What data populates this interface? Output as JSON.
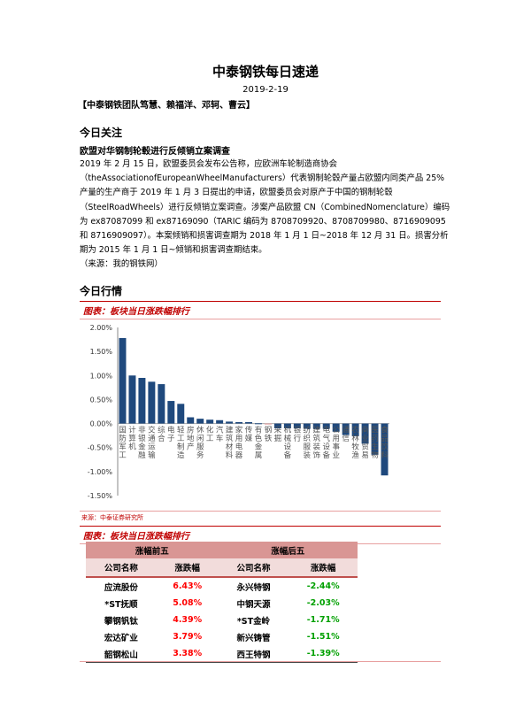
{
  "header": {
    "title": "中泰钢铁每日速递",
    "date": "2019-2-19",
    "team": "【中泰钢铁团队笃慧、赖福洋、邓轲、曹云】"
  },
  "focus": {
    "heading": "今日关注",
    "news_title": "欧盟对华钢制轮毂进行反倾销立案调查",
    "paragraphs": [
      "2019 年 2 月 15 日，欧盟委员会发布公告称，应欧洲车轮制造商协会（theAssociationofEuropeanWheelManufacturers）代表钢制轮毂产量占欧盟内同类产品 25%产量的生产商于 2019 年 1 月 3 日提出的申请，欧盟委员会对原产于中国的钢制轮毂（SteelRoadWheels）进行反倾销立案调查。涉案产品欧盟 CN（CombinedNomenclature）编码为 ex87087099 和 ex87169090（TARIC 编码为 8708709920、8708709980、8716909095 和 8716909097）。本案倾销和损害调查期为 2018 年 1 月 1 日~2018 年 12 月 31 日。损害分析期为 2015 年 1 月 1 日~倾销和损害调查期结束。",
      "（来源：我的钢铁网）"
    ]
  },
  "market": {
    "heading": "今日行情",
    "chart_caption": "图表：板块当日涨跌幅排行",
    "chart_source": "来源：中泰证券研究所",
    "table_caption": "图表：板块当日涨跌幅排行"
  },
  "chart_data": {
    "type": "bar",
    "categories": [
      "国防军工",
      "计算机",
      "非银金融",
      "交通运输",
      "综合",
      "电子",
      "轻工制造",
      "房地产",
      "休闲服务",
      "化工",
      "汽车",
      "建筑材料",
      "家用电器",
      "传媒",
      "有色金属",
      "钢铁",
      "采掘",
      "机械设备",
      "银行",
      "纺织服装",
      "建筑装饰",
      "电气设备",
      "公用事业",
      "通信",
      "农林牧渔",
      "商业贸易",
      "医药生物",
      "食品饮料"
    ],
    "values": [
      1.78,
      1.0,
      0.95,
      0.87,
      0.82,
      0.47,
      0.41,
      0.13,
      0.1,
      0.08,
      0.07,
      0.04,
      0.03,
      0.03,
      0.005,
      -0.02,
      -0.1,
      -0.1,
      -0.1,
      -0.11,
      -0.11,
      -0.11,
      -0.17,
      -0.24,
      -0.26,
      -0.42,
      -0.65,
      -1.08
    ],
    "unit": "%",
    "ylim": [
      -1.5,
      2.0
    ],
    "yticks": [
      "2.00%",
      "1.50%",
      "1.00%",
      "0.50%",
      "0.00%",
      "-0.50%",
      "-1.00%",
      "-1.50%"
    ],
    "bar_color": "#1f497d",
    "highlight": {
      "category": "钢铁",
      "color": "#e6a0a0"
    },
    "grid": false
  },
  "table": {
    "groups": [
      "涨幅前五",
      "涨幅后五"
    ],
    "columns": [
      "公司名称",
      "涨跌幅",
      "公司名称",
      "涨跌幅"
    ],
    "rows": [
      [
        "应流股份",
        "6.43%",
        "永兴特钢",
        "-2.44%"
      ],
      [
        "*ST抚顺",
        "5.08%",
        "中钢天源",
        "-2.03%"
      ],
      [
        "攀钢钒钛",
        "4.39%",
        "*ST金岭",
        "-1.71%"
      ],
      [
        "宏达矿业",
        "3.79%",
        "新兴铸管",
        "-1.51%"
      ],
      [
        "韶钢松山",
        "3.38%",
        "西王特钢",
        "-1.39%"
      ]
    ],
    "colors": {
      "up": "#ff0000",
      "down": "#00a000",
      "header": "#d99694"
    }
  }
}
